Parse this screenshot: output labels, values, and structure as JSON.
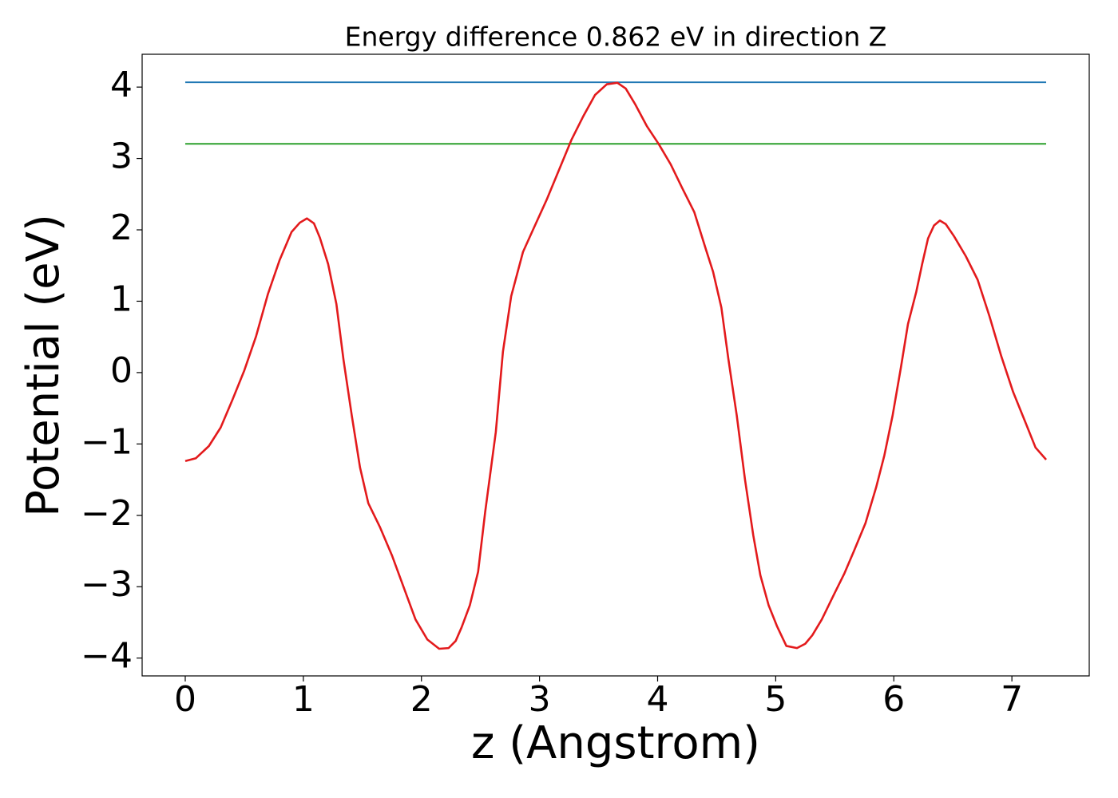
{
  "chart_data": {
    "type": "line",
    "title": "Energy difference 0.862 eV in direction Z",
    "xlabel": "z (Angstrom)",
    "ylabel": "Potential (eV)",
    "xlim": [
      -0.365,
      7.655
    ],
    "ylim": [
      -4.25,
      4.46
    ],
    "xticks": [
      0,
      1,
      2,
      3,
      4,
      5,
      6,
      7
    ],
    "yticks": [
      {
        "value": -4,
        "label": "−4"
      },
      {
        "value": -3,
        "label": "−3"
      },
      {
        "value": -2,
        "label": "−2"
      },
      {
        "value": -1,
        "label": "−1"
      },
      0,
      1,
      2,
      3,
      4
    ],
    "grid": false,
    "series": [
      {
        "color": "#1f77b4",
        "x": [
          0,
          7.29
        ],
        "values": [
          4.067,
          4.067
        ]
      },
      {
        "color": "#2ca02c",
        "x": [
          0,
          7.29
        ],
        "values": [
          3.205,
          3.205
        ]
      },
      {
        "color": "#e31a1c",
        "x": [
          0,
          0.09,
          0.2,
          0.3,
          0.4,
          0.5,
          0.6,
          0.7,
          0.8,
          0.9,
          0.97,
          1.03,
          1.09,
          1.14,
          1.21,
          1.28,
          1.34,
          1.41,
          1.48,
          1.55,
          1.65,
          1.75,
          1.85,
          1.95,
          2.05,
          2.15,
          2.23,
          2.29,
          2.34,
          2.41,
          2.48,
          2.54,
          2.63,
          2.69,
          2.76,
          2.86,
          2.95,
          3.06,
          3.17,
          3.27,
          3.37,
          3.47,
          3.57,
          3.66,
          3.73,
          3.81,
          3.91,
          4.01,
          4.11,
          4.21,
          4.31,
          4.41,
          4.47,
          4.54,
          4.6,
          4.67,
          4.74,
          4.81,
          4.87,
          4.94,
          5.01,
          5.09,
          5.18,
          5.25,
          5.31,
          5.39,
          5.49,
          5.58,
          5.66,
          5.76,
          5.85,
          5.92,
          5.99,
          6.06,
          6.12,
          6.19,
          6.24,
          6.29,
          6.34,
          6.39,
          6.44,
          6.51,
          6.61,
          6.71,
          6.81,
          6.91,
          7.01,
          7.12,
          7.2,
          7.29
        ],
        "values": [
          -1.24,
          -1.2,
          -1.03,
          -0.77,
          -0.38,
          0.03,
          0.51,
          1.1,
          1.58,
          1.97,
          2.1,
          2.16,
          2.09,
          1.89,
          1.52,
          0.96,
          0.18,
          -0.6,
          -1.33,
          -1.83,
          -2.17,
          -2.56,
          -3.01,
          -3.46,
          -3.74,
          -3.87,
          -3.86,
          -3.76,
          -3.57,
          -3.26,
          -2.79,
          -1.95,
          -0.83,
          0.29,
          1.07,
          1.69,
          2.02,
          2.42,
          2.86,
          3.26,
          3.59,
          3.89,
          4.04,
          4.06,
          3.98,
          3.76,
          3.45,
          3.2,
          2.92,
          2.58,
          2.25,
          1.72,
          1.41,
          0.91,
          0.18,
          -0.6,
          -1.5,
          -2.28,
          -2.84,
          -3.26,
          -3.55,
          -3.83,
          -3.86,
          -3.8,
          -3.68,
          -3.46,
          -3.12,
          -2.82,
          -2.51,
          -2.11,
          -1.61,
          -1.16,
          -0.6,
          0.07,
          0.68,
          1.13,
          1.52,
          1.88,
          2.06,
          2.13,
          2.08,
          1.91,
          1.63,
          1.3,
          0.79,
          0.23,
          -0.27,
          -0.72,
          -1.05,
          -1.22
        ]
      }
    ]
  }
}
